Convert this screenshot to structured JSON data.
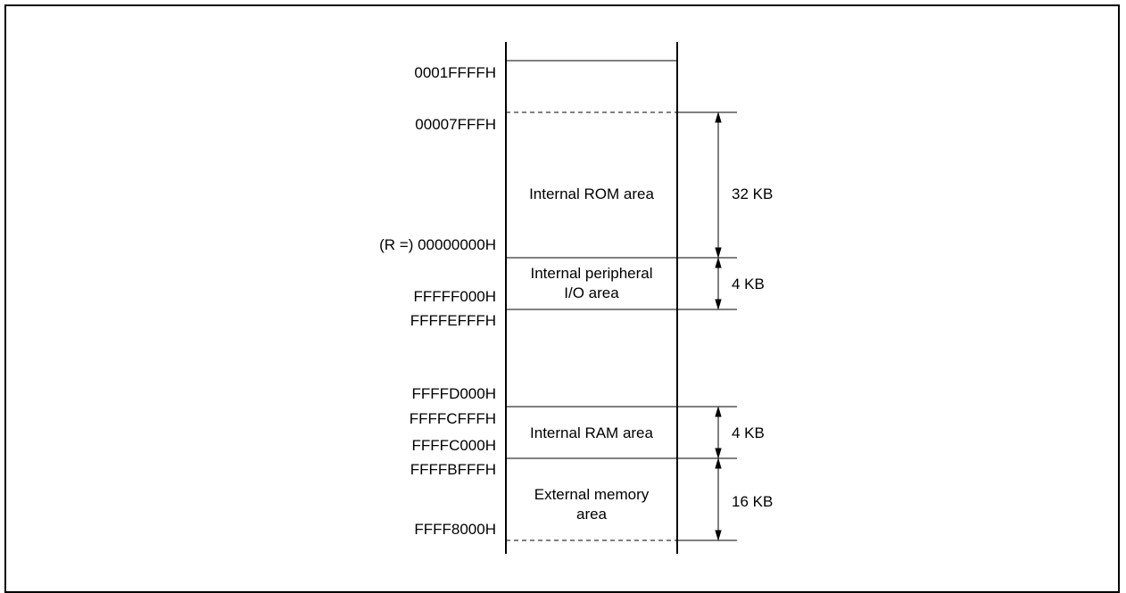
{
  "addresses": {
    "a0001ffff": "0001FFFFH",
    "a00007fff": "00007FFFH",
    "r_base": "(R =) 00000000H",
    "fffff000": "FFFFF000H",
    "fffefff": "FFFFEFFFH",
    "ffffd000": "FFFFD000H",
    "ffffcfff": "FFFFCFFFH",
    "ffffc000": "FFFFC000H",
    "ffffbfff": "FFFFBFFFH",
    "ffff8000": "FFFF8000H"
  },
  "areas": {
    "internal_rom": "Internal ROM area",
    "peripheral_io_line1": "Internal peripheral",
    "peripheral_io_line2": "I/O area",
    "internal_ram": "Internal RAM area",
    "external_memory_line1": "External memory",
    "external_memory_line2": "area"
  },
  "sizes": {
    "rom": "32 KB",
    "peripheral_io": "4 KB",
    "ram": "4 KB",
    "external": "16 KB"
  }
}
